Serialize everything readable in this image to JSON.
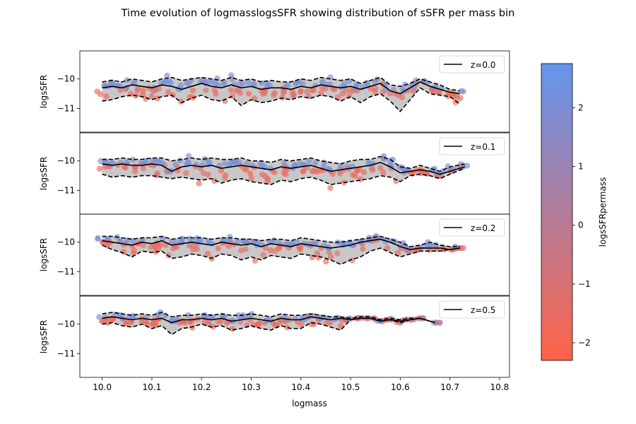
{
  "chart_data": {
    "type": "scatter",
    "title": "Time evolution of logmasslogsSFR showing distribution of sSFR per mass bin",
    "xlabel": "logmass",
    "ylabel": "logsSFR",
    "xlim": [
      9.955,
      10.82
    ],
    "x_ticks": [
      "10.0",
      "10.1",
      "10.2",
      "10.3",
      "10.4",
      "10.5",
      "10.6",
      "10.7",
      "10.8"
    ],
    "x_tick_values": [
      10.0,
      10.1,
      10.2,
      10.3,
      10.4,
      10.5,
      10.6,
      10.7,
      10.8
    ],
    "y_ticks": [
      "−10",
      "−11"
    ],
    "y_tick_values": [
      -10,
      -11
    ],
    "colorbar": {
      "label": "logsSFRpermass",
      "range": [
        -2.3,
        2.75
      ],
      "ticks": [
        "2",
        "1",
        "0",
        "−1",
        "−2"
      ],
      "tick_values": [
        2,
        1,
        0,
        -1,
        -2
      ],
      "color_low": "#ff6347",
      "color_high": "#6495ed"
    },
    "panels": [
      {
        "legend": "z=0.0",
        "ylim": [
          -11.8,
          -9.05
        ],
        "bins": [
          10.0,
          10.02,
          10.04,
          10.06,
          10.08,
          10.1,
          10.12,
          10.14,
          10.16,
          10.18,
          10.2,
          10.22,
          10.24,
          10.26,
          10.28,
          10.3,
          10.32,
          10.34,
          10.36,
          10.38,
          10.4,
          10.42,
          10.44,
          10.46,
          10.48,
          10.5,
          10.52,
          10.54,
          10.56,
          10.58,
          10.6,
          10.62,
          10.64,
          10.66,
          10.68,
          10.7,
          10.72
        ],
        "median": [
          -10.3,
          -10.25,
          -10.3,
          -10.2,
          -10.25,
          -10.3,
          -10.2,
          -10.25,
          -10.35,
          -10.25,
          -10.15,
          -10.25,
          -10.3,
          -10.2,
          -10.3,
          -10.25,
          -10.35,
          -10.3,
          -10.3,
          -10.35,
          -10.25,
          -10.3,
          -10.2,
          -10.25,
          -10.3,
          -10.25,
          -10.35,
          -10.25,
          -10.15,
          -10.4,
          -10.5,
          -10.3,
          -10.1,
          -10.25,
          -10.35,
          -10.45,
          -10.5
        ],
        "upper": [
          -10.1,
          -10.05,
          -10.1,
          -10.0,
          -10.05,
          -10.1,
          -10.0,
          -9.95,
          -10.05,
          -10.0,
          -9.95,
          -10.0,
          -10.05,
          -9.95,
          -10.05,
          -10.0,
          -10.1,
          -10.05,
          -10.1,
          -10.1,
          -10.0,
          -10.05,
          -9.95,
          -10.0,
          -10.05,
          -10.0,
          -10.15,
          -10.05,
          -9.95,
          -10.2,
          -10.25,
          -10.15,
          -10.0,
          -10.1,
          -10.2,
          -10.35,
          -10.4
        ],
        "lower": [
          -10.75,
          -10.7,
          -10.6,
          -10.55,
          -10.6,
          -10.7,
          -10.6,
          -10.55,
          -10.8,
          -10.65,
          -10.55,
          -10.7,
          -10.75,
          -10.6,
          -10.9,
          -10.7,
          -10.8,
          -10.75,
          -10.65,
          -10.7,
          -10.6,
          -10.65,
          -10.55,
          -10.6,
          -10.75,
          -10.6,
          -10.8,
          -10.6,
          -10.5,
          -10.75,
          -11.1,
          -10.7,
          -10.3,
          -10.5,
          -10.55,
          -10.6,
          -10.85
        ]
      },
      {
        "legend": "z=0.1",
        "ylim": [
          -11.8,
          -9.05
        ],
        "bins": [
          10.0,
          10.02,
          10.04,
          10.06,
          10.08,
          10.1,
          10.12,
          10.14,
          10.16,
          10.18,
          10.2,
          10.22,
          10.24,
          10.26,
          10.28,
          10.3,
          10.32,
          10.34,
          10.36,
          10.38,
          10.4,
          10.42,
          10.44,
          10.46,
          10.48,
          10.5,
          10.52,
          10.54,
          10.56,
          10.58,
          10.6,
          10.62,
          10.64,
          10.66,
          10.68,
          10.7,
          10.73
        ],
        "median": [
          -10.1,
          -10.15,
          -10.1,
          -10.15,
          -10.15,
          -10.1,
          -10.15,
          -10.35,
          -10.2,
          -10.15,
          -10.2,
          -10.15,
          -10.25,
          -10.2,
          -10.15,
          -10.2,
          -10.25,
          -10.3,
          -10.2,
          -10.25,
          -10.2,
          -10.15,
          -10.25,
          -10.35,
          -10.3,
          -10.25,
          -10.2,
          -10.15,
          -10.05,
          -10.2,
          -10.4,
          -10.35,
          -10.3,
          -10.35,
          -10.45,
          -10.35,
          -10.2
        ],
        "upper": [
          -9.95,
          -9.95,
          -9.9,
          -9.95,
          -9.95,
          -9.9,
          -9.9,
          -10.0,
          -9.95,
          -9.9,
          -9.95,
          -9.9,
          -9.95,
          -9.95,
          -9.9,
          -10.0,
          -10.0,
          -10.05,
          -9.95,
          -10.0,
          -9.95,
          -9.9,
          -10.0,
          -10.05,
          -10.1,
          -10.0,
          -9.95,
          -9.95,
          -9.85,
          -9.95,
          -10.2,
          -10.25,
          -10.15,
          -10.25,
          -10.35,
          -10.2,
          -10.1
        ],
        "lower": [
          -10.45,
          -10.55,
          -10.5,
          -10.55,
          -10.5,
          -10.5,
          -10.55,
          -10.6,
          -10.55,
          -10.6,
          -10.65,
          -10.6,
          -10.75,
          -10.65,
          -10.6,
          -10.7,
          -10.75,
          -10.8,
          -10.65,
          -10.7,
          -10.6,
          -10.55,
          -10.65,
          -10.8,
          -10.75,
          -10.7,
          -10.65,
          -10.6,
          -10.5,
          -10.55,
          -10.7,
          -10.5,
          -10.45,
          -10.5,
          -10.6,
          -10.45,
          -10.25
        ]
      },
      {
        "legend": "z=0.2",
        "ylim": [
          -11.8,
          -9.05
        ],
        "bins": [
          10.0,
          10.02,
          10.04,
          10.06,
          10.08,
          10.1,
          10.12,
          10.14,
          10.16,
          10.18,
          10.2,
          10.22,
          10.24,
          10.26,
          10.28,
          10.3,
          10.32,
          10.34,
          10.36,
          10.38,
          10.4,
          10.42,
          10.44,
          10.46,
          10.48,
          10.5,
          10.52,
          10.54,
          10.56,
          10.58,
          10.6,
          10.62,
          10.64,
          10.66,
          10.68,
          10.7,
          10.72
        ],
        "median": [
          -9.95,
          -10.0,
          -10.05,
          -10.1,
          -10.0,
          -10.05,
          -9.95,
          -10.1,
          -10.05,
          -10.0,
          -10.05,
          -10.1,
          -10.0,
          -10.05,
          -10.1,
          -10.05,
          -10.15,
          -10.05,
          -10.1,
          -10.15,
          -10.05,
          -10.1,
          -10.15,
          -10.2,
          -10.15,
          -10.1,
          -10.0,
          -9.95,
          -9.9,
          -10.0,
          -10.15,
          -10.25,
          -10.2,
          -10.2,
          -10.2,
          -10.25,
          -10.2
        ],
        "upper": [
          -9.8,
          -9.8,
          -9.85,
          -9.9,
          -9.85,
          -9.85,
          -9.8,
          -9.9,
          -9.85,
          -9.85,
          -9.85,
          -9.9,
          -9.85,
          -9.85,
          -9.9,
          -9.9,
          -9.95,
          -9.9,
          -9.9,
          -9.95,
          -9.85,
          -9.9,
          -9.95,
          -10.0,
          -10.0,
          -9.95,
          -9.9,
          -9.85,
          -9.8,
          -9.9,
          -10.0,
          -10.15,
          -10.1,
          -10.0,
          -10.1,
          -10.15,
          -10.15
        ],
        "lower": [
          -10.1,
          -10.25,
          -10.35,
          -10.5,
          -10.3,
          -10.35,
          -10.3,
          -10.55,
          -10.5,
          -10.4,
          -10.45,
          -10.55,
          -10.4,
          -10.45,
          -10.6,
          -10.5,
          -10.6,
          -10.45,
          -10.5,
          -10.55,
          -10.4,
          -10.45,
          -10.5,
          -10.6,
          -10.75,
          -10.6,
          -10.5,
          -10.3,
          -10.2,
          -10.35,
          -10.5,
          -10.4,
          -10.3,
          -10.3,
          -10.3,
          -10.25,
          -10.2
        ]
      },
      {
        "legend": "z=0.5",
        "ylim": [
          -11.8,
          -9.05
        ],
        "bins": [
          10.0,
          10.02,
          10.04,
          10.06,
          10.08,
          10.1,
          10.12,
          10.14,
          10.16,
          10.18,
          10.2,
          10.22,
          10.24,
          10.26,
          10.28,
          10.3,
          10.32,
          10.34,
          10.36,
          10.38,
          10.4,
          10.42,
          10.44,
          10.46,
          10.48,
          10.5,
          10.52,
          10.54,
          10.56,
          10.58,
          10.6,
          10.62,
          10.64,
          10.67
        ],
        "median": [
          -9.8,
          -9.75,
          -9.8,
          -9.85,
          -9.8,
          -9.85,
          -9.8,
          -9.95,
          -9.85,
          -9.85,
          -9.8,
          -9.85,
          -9.8,
          -9.9,
          -9.85,
          -9.8,
          -9.85,
          -9.9,
          -9.8,
          -9.85,
          -9.85,
          -9.75,
          -9.8,
          -9.85,
          -9.8,
          -9.85,
          -9.8,
          -9.8,
          -9.9,
          -9.85,
          -9.9,
          -9.85,
          -9.8,
          -9.95
        ],
        "upper": [
          -9.65,
          -9.6,
          -9.65,
          -9.7,
          -9.65,
          -9.7,
          -9.6,
          -9.75,
          -9.7,
          -9.7,
          -9.65,
          -9.7,
          -9.65,
          -9.7,
          -9.7,
          -9.65,
          -9.7,
          -9.75,
          -9.65,
          -9.7,
          -9.7,
          -9.65,
          -9.7,
          -9.75,
          -9.75,
          -9.8,
          -9.75,
          -9.75,
          -9.85,
          -9.8,
          -9.85,
          -9.8,
          -9.8,
          -9.95
        ],
        "lower": [
          -10.0,
          -9.95,
          -10.05,
          -10.1,
          -10.0,
          -10.15,
          -10.05,
          -10.35,
          -10.15,
          -10.1,
          -10.0,
          -10.1,
          -10.05,
          -10.2,
          -10.15,
          -10.05,
          -10.15,
          -10.2,
          -10.05,
          -10.15,
          -10.15,
          -9.95,
          -10.0,
          -10.1,
          -10.2,
          -9.85,
          -9.8,
          -9.8,
          -9.9,
          -9.85,
          -9.95,
          -9.85,
          -9.8,
          -9.95
        ]
      }
    ]
  }
}
